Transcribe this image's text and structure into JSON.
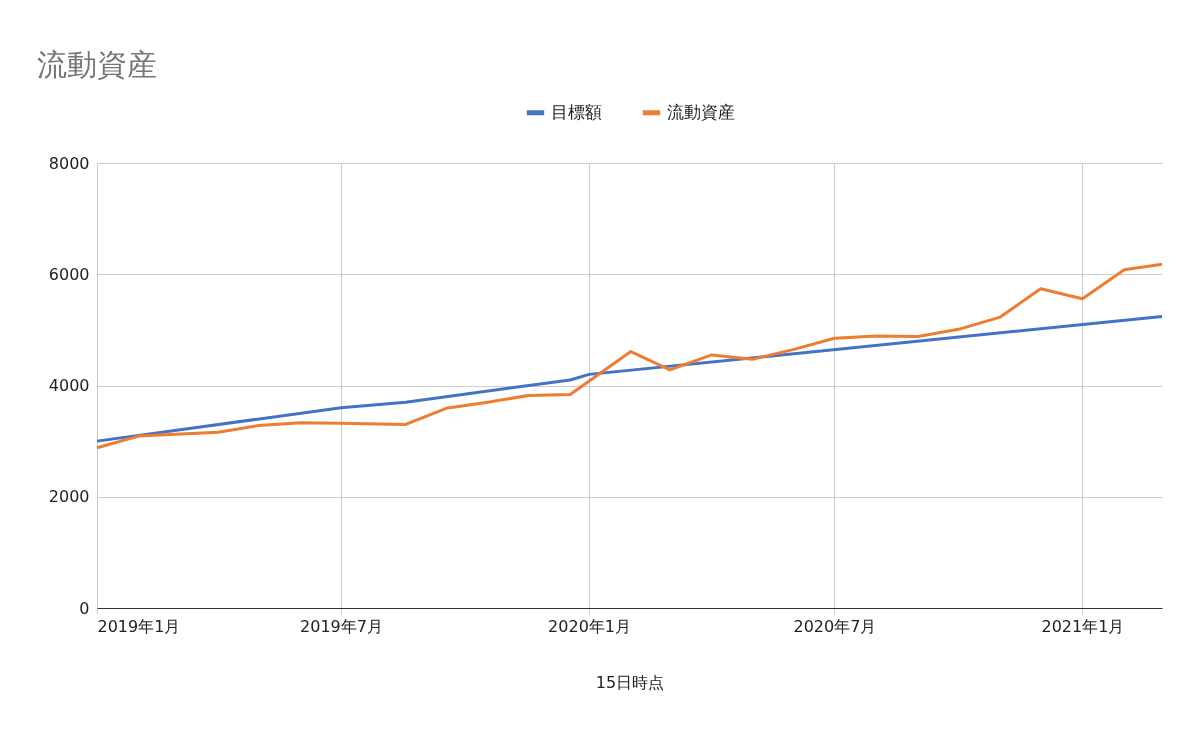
{
  "chart_data": {
    "type": "line",
    "title": "流動資産",
    "xlabel": "15日時点",
    "xlim": [
      "2019-01-15",
      "2021-03-15"
    ],
    "xticks": [
      {
        "value": "2019-01-15",
        "label": "2019年1月"
      },
      {
        "value": "2019-07-15",
        "label": "2019年7月"
      },
      {
        "value": "2020-01-15",
        "label": "2020年1月"
      },
      {
        "value": "2020-07-15",
        "label": "2020年7月"
      },
      {
        "value": "2021-01-15",
        "label": "2021年1月"
      }
    ],
    "ylim": [
      0,
      8000
    ],
    "yticks": [
      0,
      2000,
      4000,
      6000,
      8000
    ],
    "grid": true,
    "legend": "top",
    "series": [
      {
        "name": "目標額",
        "color": "#4472c4",
        "x": [
          "2019-01-15",
          "2019-07-15",
          "2019-09-01",
          "2020-01-01",
          "2020-01-15",
          "2021-03-15"
        ],
        "values": [
          3000,
          3600,
          3700,
          4100,
          4200,
          5240
        ]
      },
      {
        "name": "流動資産",
        "color": "#ed7d31",
        "x": [
          "2019-01-15",
          "2019-02-15",
          "2019-04-15",
          "2019-05-15",
          "2019-06-15",
          "2019-07-15",
          "2019-09-01",
          "2019-10-01",
          "2019-11-01",
          "2019-12-01",
          "2020-01-01",
          "2020-02-15",
          "2020-03-15",
          "2020-04-15",
          "2020-05-15",
          "2020-06-15",
          "2020-07-15",
          "2020-08-15",
          "2020-09-15",
          "2020-10-15",
          "2020-11-15",
          "2020-12-15",
          "2021-01-15",
          "2021-02-15",
          "2021-03-15"
        ],
        "values": [
          2880,
          3090,
          3160,
          3280,
          3330,
          3320,
          3300,
          3590,
          3700,
          3820,
          3840,
          4610,
          4280,
          4550,
          4470,
          4650,
          4850,
          4890,
          4880,
          5010,
          5230,
          5740,
          5560,
          6080,
          6180
        ]
      }
    ]
  }
}
